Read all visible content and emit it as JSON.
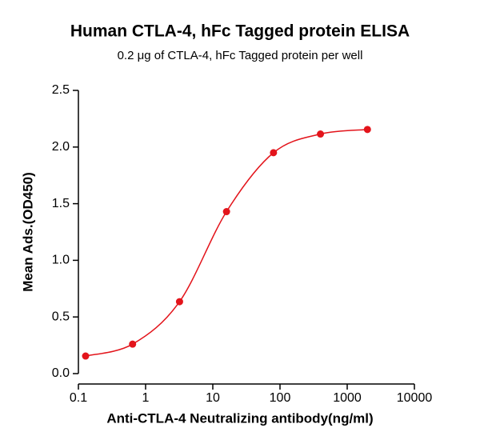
{
  "chart_data": {
    "type": "scatter",
    "title": "Human CTLA-4, hFc Tagged protein ELISA",
    "subtitle": "0.2 μg of CTLA-4, hFc Tagged protein per well",
    "x_label": "Anti-CTLA-4 Neutralizing antibody(ng/ml)",
    "y_label": "Mean Ads.(OD450)",
    "x_scale": "log",
    "xlim": [
      0.1,
      10000
    ],
    "xticks": [
      0.1,
      1,
      10,
      100,
      1000,
      10000
    ],
    "ylim": [
      0,
      2.5
    ],
    "yticks": [
      {
        "value": 0,
        "label": "0.0"
      },
      0.5,
      {
        "value": 1,
        "label": "1.0"
      },
      1.5,
      {
        "value": 2,
        "label": "2.0"
      },
      2.5
    ],
    "series": [
      {
        "color": "#e3141b",
        "x": [
          0.128,
          0.64,
          3.2,
          16,
          80,
          400,
          2000
        ],
        "values": [
          0.155,
          0.26,
          0.635,
          1.43,
          1.95,
          2.115,
          2.155
        ]
      }
    ]
  }
}
